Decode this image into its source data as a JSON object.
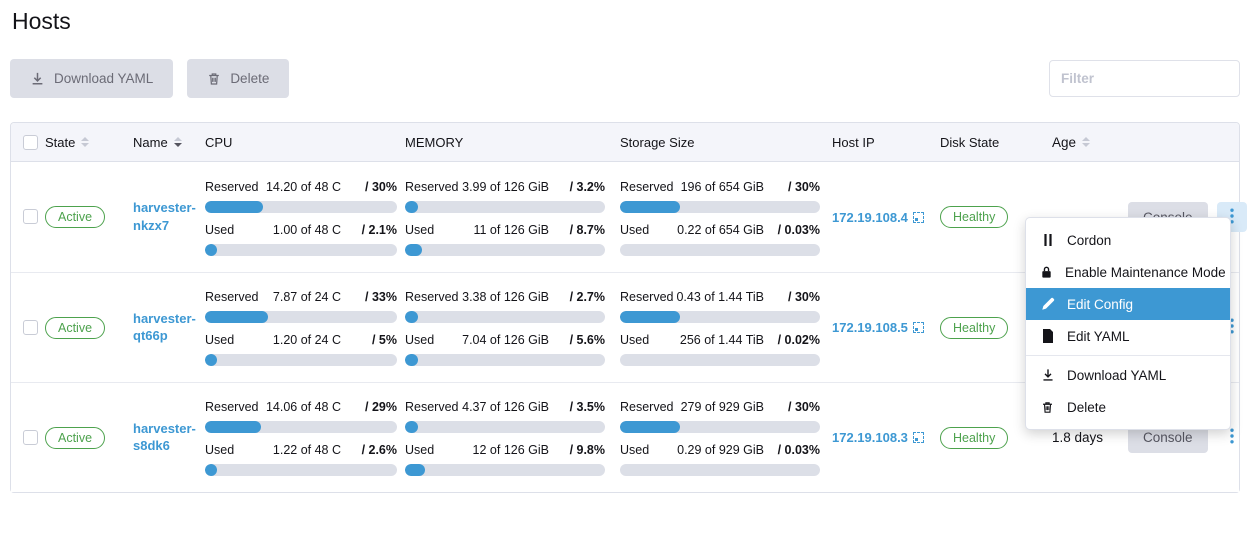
{
  "page": {
    "title": "Hosts"
  },
  "toolbar": {
    "download_yaml_label": "Download YAML",
    "delete_label": "Delete",
    "filter_placeholder": "Filter"
  },
  "table": {
    "headers": {
      "state": "State",
      "name": "Name",
      "cpu": "CPU",
      "memory": "MEMORY",
      "storage": "Storage Size",
      "host_ip": "Host IP",
      "disk_state": "Disk State",
      "age": "Age"
    },
    "gauge_labels": {
      "reserved": "Reserved",
      "used": "Used"
    },
    "rows": [
      {
        "state": "Active",
        "name": "harvester-nkzx7",
        "cpu": {
          "reserved": {
            "value": "14.20 of 48 C",
            "pct_label": "/ 30%",
            "pct": 30
          },
          "used": {
            "value": "1.00 of 48 C",
            "pct_label": "/ 2.1%",
            "pct": 2.1
          }
        },
        "memory": {
          "reserved": {
            "value": "3.99 of 126 GiB",
            "pct_label": "/ 3.2%",
            "pct": 3.2
          },
          "used": {
            "value": "11 of 126 GiB",
            "pct_label": "/ 8.7%",
            "pct": 8.7
          }
        },
        "storage": {
          "reserved": {
            "value": "196 of 654 GiB",
            "pct_label": "/ 30%",
            "pct": 30
          },
          "used": {
            "value": "0.22 of 654 GiB",
            "pct_label": "/ 0.03%",
            "pct": 0.03
          }
        },
        "host_ip": "172.19.108.4",
        "disk_state": "Healthy",
        "age": "",
        "console_label": "Console",
        "menu_open": true
      },
      {
        "state": "Active",
        "name": "harvester-qt66p",
        "cpu": {
          "reserved": {
            "value": "7.87 of 24 C",
            "pct_label": "/ 33%",
            "pct": 33
          },
          "used": {
            "value": "1.20 of 24 C",
            "pct_label": "/ 5%",
            "pct": 5
          }
        },
        "memory": {
          "reserved": {
            "value": "3.38 of 126 GiB",
            "pct_label": "/ 2.7%",
            "pct": 2.7
          },
          "used": {
            "value": "7.04 of 126 GiB",
            "pct_label": "/ 5.6%",
            "pct": 5.6
          }
        },
        "storage": {
          "reserved": {
            "value": "0.43 of 1.44 TiB",
            "pct_label": "/ 30%",
            "pct": 30
          },
          "used": {
            "value": "256 of 1.44 TiB",
            "pct_label": "/ 0.02%",
            "pct": 0.02
          }
        },
        "host_ip": "172.19.108.5",
        "disk_state": "Healthy",
        "age": "",
        "console_label": "Console",
        "menu_open": false
      },
      {
        "state": "Active",
        "name": "harvester-s8dk6",
        "cpu": {
          "reserved": {
            "value": "14.06 of 48 C",
            "pct_label": "/ 29%",
            "pct": 29
          },
          "used": {
            "value": "1.22 of 48 C",
            "pct_label": "/ 2.6%",
            "pct": 2.6
          }
        },
        "memory": {
          "reserved": {
            "value": "4.37 of 126 GiB",
            "pct_label": "/ 3.5%",
            "pct": 3.5
          },
          "used": {
            "value": "12 of 126 GiB",
            "pct_label": "/ 9.8%",
            "pct": 9.8
          }
        },
        "storage": {
          "reserved": {
            "value": "279 of 929 GiB",
            "pct_label": "/ 30%",
            "pct": 30
          },
          "used": {
            "value": "0.29 of 929 GiB",
            "pct_label": "/ 0.03%",
            "pct": 0.03
          }
        },
        "host_ip": "172.19.108.3",
        "disk_state": "Healthy",
        "age": "1.8 days",
        "console_label": "Console",
        "menu_open": false
      }
    ]
  },
  "context_menu": {
    "items": [
      {
        "label": "Cordon",
        "icon": "pause-icon"
      },
      {
        "label": "Enable Maintenance Mode",
        "icon": "lock-icon"
      },
      {
        "label": "Edit Config",
        "icon": "pencil-icon",
        "active": true
      },
      {
        "label": "Edit YAML",
        "icon": "file-icon"
      },
      {
        "label": "Download YAML",
        "icon": "download-icon",
        "divider_before": true
      },
      {
        "label": "Delete",
        "icon": "trash-icon"
      }
    ]
  },
  "colors": {
    "primary_blue": "#3d98d3",
    "success_green": "#4da24d",
    "bar_track": "#dcdfe7",
    "header_bg": "#f4f5fa",
    "active_menu_bg": "#3d98d3"
  }
}
